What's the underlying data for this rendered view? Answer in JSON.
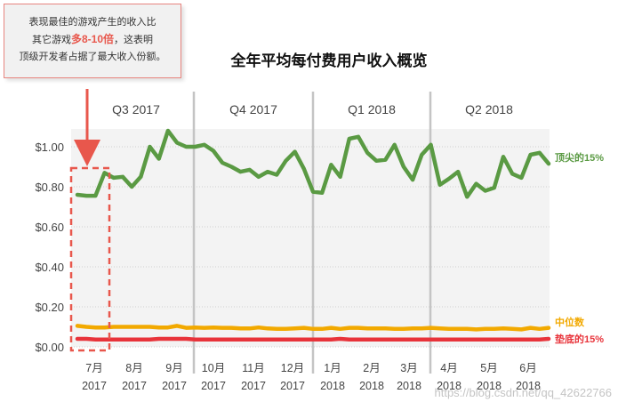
{
  "callout": {
    "line1": "表现最佳的游戏产生的收入比",
    "line2_pre": "其它游戏",
    "line2_highlight": "多8-10倍",
    "line2_post": "，这表明",
    "line3": "顶级开发者占据了最大收入份额。"
  },
  "chart_data": {
    "type": "line",
    "title": "全年平均每付费用户收入概览",
    "quarters": [
      "Q3 2017",
      "Q4 2017",
      "Q1 2018",
      "Q2 2018"
    ],
    "x_ticks": [
      {
        "month": "7月",
        "year": "2017"
      },
      {
        "month": "8月",
        "year": "2017"
      },
      {
        "month": "9月",
        "year": "2017"
      },
      {
        "month": "10月",
        "year": "2017"
      },
      {
        "month": "11月",
        "year": "2017"
      },
      {
        "month": "12月",
        "year": "2017"
      },
      {
        "month": "1月",
        "year": "2018"
      },
      {
        "month": "2月",
        "year": "2018"
      },
      {
        "month": "3月",
        "year": "2018"
      },
      {
        "month": "4月",
        "year": "2018"
      },
      {
        "month": "5月",
        "year": "2018"
      },
      {
        "month": "6月",
        "year": "2018"
      }
    ],
    "y_ticks": [
      "$0.00",
      "$0.20",
      "$0.40",
      "$0.60",
      "$0.80",
      "$1.00"
    ],
    "ylim": [
      0,
      1.1
    ],
    "grid": true,
    "series": [
      {
        "name": "顶尖的15%",
        "color": "#5a9a43",
        "values": [
          0.76,
          0.755,
          0.755,
          0.87,
          0.845,
          0.85,
          0.8,
          0.85,
          1.0,
          0.94,
          1.08,
          1.02,
          1.0,
          1.0,
          1.01,
          0.98,
          0.92,
          0.9,
          0.875,
          0.885,
          0.85,
          0.875,
          0.86,
          0.93,
          0.975,
          0.89,
          0.775,
          0.77,
          0.91,
          0.85,
          1.04,
          1.05,
          0.97,
          0.93,
          0.935,
          1.01,
          0.9,
          0.835,
          0.96,
          1.01,
          0.81,
          0.84,
          0.875,
          0.75,
          0.815,
          0.78,
          0.795,
          0.95,
          0.865,
          0.845,
          0.96,
          0.97,
          0.915
        ]
      },
      {
        "name": "中位数",
        "color": "#f2a900",
        "values": [
          0.105,
          0.1,
          0.097,
          0.097,
          0.1,
          0.1,
          0.1,
          0.1,
          0.1,
          0.097,
          0.097,
          0.105,
          0.095,
          0.097,
          0.095,
          0.097,
          0.095,
          0.095,
          0.092,
          0.092,
          0.097,
          0.092,
          0.09,
          0.09,
          0.092,
          0.095,
          0.09,
          0.09,
          0.095,
          0.09,
          0.095,
          0.095,
          0.092,
          0.092,
          0.092,
          0.09,
          0.09,
          0.092,
          0.092,
          0.095,
          0.092,
          0.09,
          0.09,
          0.09,
          0.087,
          0.09,
          0.09,
          0.092,
          0.09,
          0.087,
          0.095,
          0.09,
          0.095
        ]
      },
      {
        "name": "垫底的15%",
        "color": "#e8333a",
        "values": [
          0.04,
          0.04,
          0.037,
          0.037,
          0.037,
          0.037,
          0.037,
          0.037,
          0.037,
          0.04,
          0.04,
          0.04,
          0.04,
          0.037,
          0.037,
          0.037,
          0.037,
          0.037,
          0.037,
          0.037,
          0.037,
          0.037,
          0.037,
          0.037,
          0.037,
          0.037,
          0.037,
          0.037,
          0.037,
          0.04,
          0.037,
          0.037,
          0.037,
          0.037,
          0.037,
          0.037,
          0.037,
          0.037,
          0.037,
          0.037,
          0.037,
          0.037,
          0.037,
          0.037,
          0.037,
          0.037,
          0.037,
          0.037,
          0.037,
          0.037,
          0.037,
          0.037,
          0.04
        ]
      }
    ]
  },
  "watermark": "https://blog.csdn.net/qq_42622766"
}
